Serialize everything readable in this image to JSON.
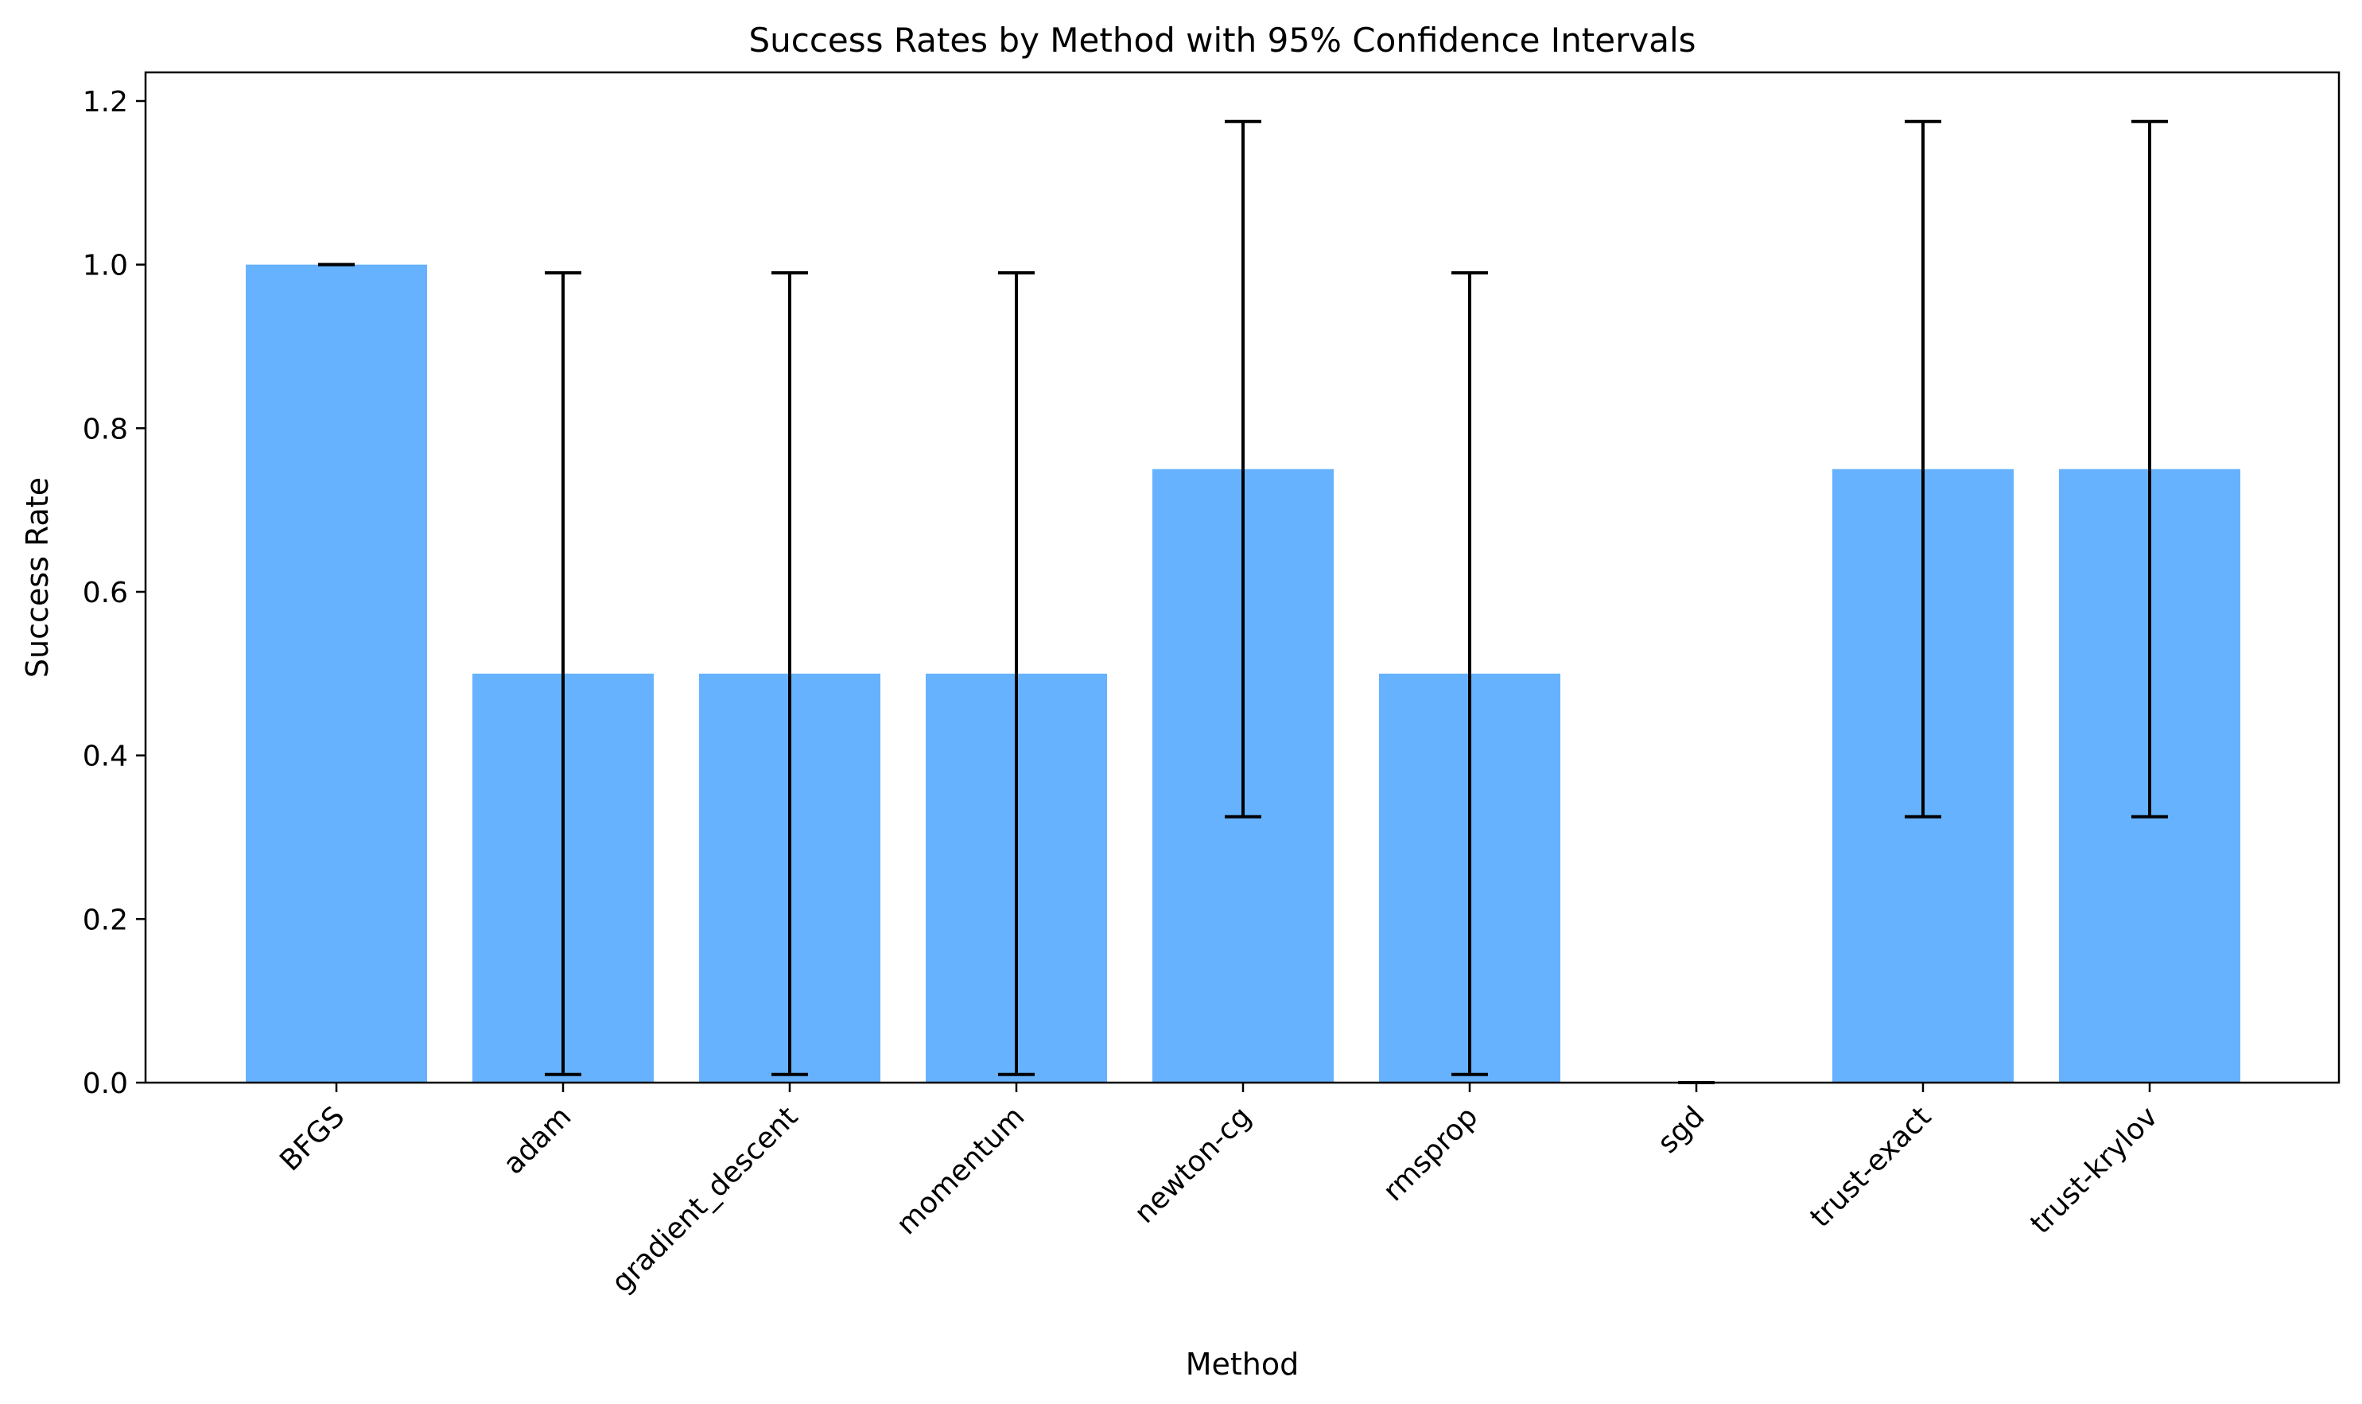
{
  "chart_data": {
    "type": "bar",
    "title": "Success Rates by Method with 95% Confidence Intervals",
    "xlabel": "Method",
    "ylabel": "Success Rate",
    "categories": [
      "BFGS",
      "adam",
      "gradient_descent",
      "momentum",
      "newton-cg",
      "rmsprop",
      "sgd",
      "trust-exact",
      "trust-krylov"
    ],
    "values": [
      1.0,
      0.5,
      0.5,
      0.5,
      0.75,
      0.5,
      0.0,
      0.75,
      0.75
    ],
    "error_lower": [
      1.0,
      0.01,
      0.01,
      0.01,
      0.325,
      0.01,
      0.0,
      0.325,
      0.325
    ],
    "error_upper": [
      1.0,
      0.99,
      0.99,
      0.99,
      1.175,
      0.99,
      0.0,
      1.175,
      1.175
    ],
    "ylim": [
      0,
      1.235
    ],
    "yticks": [
      "0.0",
      "0.2",
      "0.4",
      "0.6",
      "0.8",
      "1.0",
      "1.2"
    ],
    "grid": false,
    "bar_color": "#66b2fe",
    "error_color": "#000000"
  }
}
